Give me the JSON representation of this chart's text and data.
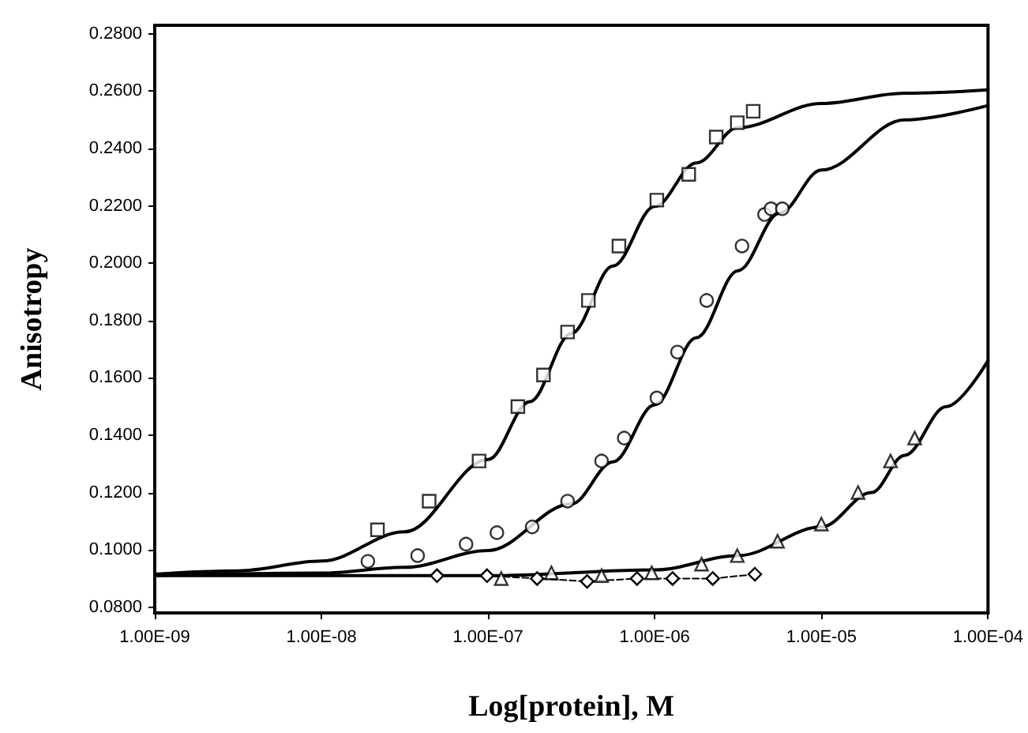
{
  "chart_data": {
    "type": "scatter",
    "xlabel": "Log[protein], M",
    "ylabel": "Anisotropy",
    "log": "x",
    "xlim": [
      1e-09,
      0.0001
    ],
    "xticks": [
      {
        "value": 1e-09,
        "label": "1.00E-09"
      },
      {
        "value": 1e-08,
        "label": "1.00E-08"
      },
      {
        "value": 1e-07,
        "label": "1.00E-07"
      },
      {
        "value": 1e-06,
        "label": "1.00E-06"
      },
      {
        "value": 1e-05,
        "label": "1.00E-05"
      },
      {
        "value": 0.0001,
        "label": "1.00E-04"
      }
    ],
    "ylim": [
      0.078,
      0.283
    ],
    "yticks": [
      {
        "value": 0.08,
        "label": "0.0800"
      },
      {
        "value": 0.1,
        "label": "0.1000"
      },
      {
        "value": 0.12,
        "label": "0.1200"
      },
      {
        "value": 0.14,
        "label": "0.1400"
      },
      {
        "value": 0.16,
        "label": "0.1600"
      },
      {
        "value": 0.18,
        "label": "0.1800"
      },
      {
        "value": 0.2,
        "label": "0.2000"
      },
      {
        "value": 0.22,
        "label": "0.2200"
      },
      {
        "value": 0.24,
        "label": "0.2400"
      },
      {
        "value": 0.26,
        "label": "0.2600"
      },
      {
        "value": 0.28,
        "label": "0.2800"
      }
    ],
    "grid": false,
    "series": [
      {
        "type": "scatter",
        "marker": "square",
        "color": "#000000",
        "x": [
          2.17e-08,
          4.43e-08,
          8.83e-08,
          1.51e-07,
          2.15e-07,
          3e-07,
          4e-07,
          6.1e-07,
          1.03e-06,
          1.6e-06,
          2.34e-06,
          3.13e-06,
          3.9e-06
        ],
        "values": [
          0.107,
          0.117,
          0.131,
          0.15,
          0.161,
          0.176,
          0.187,
          0.206,
          0.222,
          0.231,
          0.244,
          0.249,
          0.253
        ]
      },
      {
        "type": "scatter",
        "marker": "circle",
        "color": "#000000",
        "x": [
          1.9e-08,
          3.78e-08,
          7.38e-08,
          1.13e-07,
          1.84e-07,
          3e-07,
          4.8e-07,
          6.56e-07,
          1.03e-06,
          1.37e-06,
          2.05e-06,
          3.34e-06,
          4.56e-06,
          4.99e-06,
          5.83e-06
        ],
        "values": [
          0.096,
          0.098,
          0.102,
          0.106,
          0.108,
          0.117,
          0.131,
          0.139,
          0.153,
          0.169,
          0.187,
          0.206,
          0.217,
          0.219,
          0.219
        ]
      },
      {
        "type": "scatter",
        "marker": "triangle",
        "color": "#000000",
        "x": [
          1.2e-07,
          2.4e-07,
          4.8e-07,
          9.6e-07,
          1.91e-06,
          3.13e-06,
          5.46e-06,
          1e-05,
          1.66e-05,
          2.6e-05,
          3.63e-05
        ],
        "values": [
          0.09,
          0.092,
          0.091,
          0.092,
          0.095,
          0.098,
          0.103,
          0.109,
          0.12,
          0.131,
          0.139
        ]
      },
      {
        "type": "line",
        "marker": "diamond",
        "line_style": "dashed",
        "color": "#000000",
        "x": [
          4.94e-08,
          9.86e-08,
          1.97e-07,
          3.93e-07,
          7.83e-07,
          1.28e-06,
          2.23e-06,
          3.99e-06
        ],
        "values": [
          0.091,
          0.091,
          0.09,
          0.089,
          0.09,
          0.09,
          0.09,
          0.0915
        ]
      },
      {
        "type": "line",
        "marker": "none",
        "line_style": "solid",
        "color": "#000000",
        "x": [
          1e-09,
          3.16e-09,
          1e-08,
          3.16e-08,
          1e-07,
          1.78e-07,
          3.16e-07,
          5.62e-07,
          1e-06,
          1.78e-06,
          3.16e-06,
          1e-05,
          3.16e-05,
          0.0001
        ],
        "values": [
          0.0915,
          0.0927,
          0.0961,
          0.1063,
          0.1315,
          0.1517,
          0.1755,
          0.199,
          0.2198,
          0.235,
          0.2473,
          0.2557,
          0.2593,
          0.2605
        ]
      },
      {
        "type": "line",
        "marker": "none",
        "line_style": "solid",
        "color": "#000000",
        "x": [
          1e-09,
          1e-08,
          3.16e-08,
          1e-07,
          3.16e-07,
          5.62e-07,
          1e-06,
          1.78e-06,
          3.16e-06,
          5.62e-06,
          1e-05,
          3.16e-05,
          0.0001
        ],
        "values": [
          0.0911,
          0.0919,
          0.0939,
          0.0998,
          0.116,
          0.1307,
          0.1506,
          0.174,
          0.1974,
          0.2175,
          0.2325,
          0.25,
          0.255
        ]
      },
      {
        "type": "line",
        "marker": "none",
        "line_style": "solid",
        "color": "#000000",
        "x": [
          1e-09,
          1e-07,
          1e-06,
          3.16e-06,
          1e-05,
          2e-05,
          3.16e-05,
          5.62e-05,
          0.0001
        ],
        "values": [
          0.091,
          0.091,
          0.093,
          0.098,
          0.108,
          0.12,
          0.133,
          0.15,
          0.166
        ]
      }
    ]
  }
}
